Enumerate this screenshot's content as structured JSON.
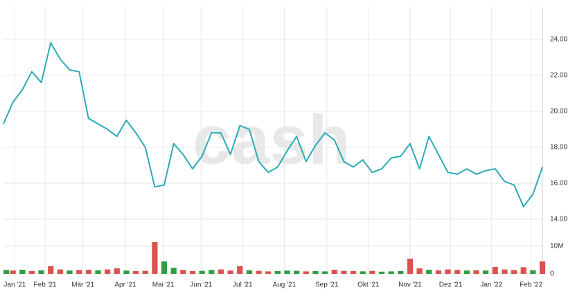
{
  "chart_data": {
    "type": "line",
    "watermark": "cash",
    "xlim": [
      0,
      57
    ],
    "xticks": [
      {
        "value": 1.2,
        "label": "Jan '21"
      },
      {
        "value": 4.4,
        "label": "Feb '21"
      },
      {
        "value": 8.4,
        "label": "Mär '21"
      },
      {
        "value": 12.9,
        "label": "Apr '21"
      },
      {
        "value": 16.9,
        "label": "Mai '21"
      },
      {
        "value": 20.9,
        "label": "Jun '21"
      },
      {
        "value": 25.3,
        "label": "Jul '21"
      },
      {
        "value": 29.7,
        "label": "Aug '21"
      },
      {
        "value": 34.2,
        "label": "Sep '21"
      },
      {
        "value": 38.6,
        "label": "Okt '21"
      },
      {
        "value": 43.0,
        "label": "Nov '21"
      },
      {
        "value": 47.3,
        "label": "Dez '21"
      },
      {
        "value": 51.6,
        "label": "Jan '22"
      },
      {
        "value": 55.8,
        "label": "Feb '22"
      }
    ],
    "ylim": [
      12.5,
      25.8
    ],
    "yticks": [
      {
        "value": 14,
        "label": "14.00"
      },
      {
        "value": 16,
        "label": "16.00"
      },
      {
        "value": 18,
        "label": "18.00"
      },
      {
        "value": 20,
        "label": "20.00"
      },
      {
        "value": 22,
        "label": "22.00"
      },
      {
        "value": 24,
        "label": "24.00"
      }
    ],
    "y2lim": [
      0,
      11.5
    ],
    "y2ticks": [
      0,
      {
        "value": 10,
        "label": "10M"
      }
    ],
    "grid": true,
    "series": [
      {
        "color": "#2aaab8",
        "values": [
          19.3,
          20.5,
          21.2,
          22.2,
          21.6,
          23.8,
          22.9,
          22.3,
          22.2,
          19.6,
          19.3,
          19.0,
          18.6,
          19.5,
          18.8,
          18.0,
          15.8,
          15.9,
          18.2,
          17.6,
          16.8,
          17.5,
          18.8,
          18.8,
          17.6,
          19.2,
          19.0,
          17.2,
          16.6,
          16.9,
          17.8,
          18.6,
          17.2,
          18.1,
          18.8,
          18.4,
          17.2,
          16.9,
          17.3,
          16.6,
          16.8,
          17.4,
          17.5,
          18.2,
          16.8,
          18.6,
          17.6,
          16.6,
          16.5,
          16.8,
          16.5,
          16.7,
          16.8,
          16.1,
          15.9,
          14.7,
          15.4,
          16.9
        ]
      },
      {
        "axis": "y2",
        "type": "bar",
        "values": [
          1.4,
          1.2,
          1.5,
          1.0,
          1.3,
          2.8,
          1.6,
          1.2,
          1.4,
          1.5,
          1.3,
          1.6,
          2.0,
          1.2,
          1.0,
          1.1,
          11.5,
          4.5,
          2.2,
          1.4,
          1.0,
          1.1,
          1.4,
          1.6,
          1.2,
          2.8,
          1.3,
          1.1,
          0.9,
          1.0,
          1.2,
          1.1,
          0.9,
          1.0,
          0.9,
          1.5,
          1.1,
          1.0,
          0.9,
          1.1,
          0.8,
          0.9,
          1.0,
          5.5,
          2.0,
          1.5,
          1.3,
          1.6,
          1.4,
          1.2,
          1.3,
          1.2,
          2.5,
          1.6,
          1.4,
          2.4,
          1.3,
          4.5
        ],
        "colors": [
          "#2e9e3e",
          "#d9534f",
          "#2e9e3e",
          "#d9534f",
          "#2e9e3e",
          "#d9534f",
          "#d9534f",
          "#2e9e3e",
          "#d9534f",
          "#d9534f",
          "#2e9e3e",
          "#d9534f",
          "#d9534f",
          "#2e9e3e",
          "#d9534f",
          "#d9534f",
          "#d9534f",
          "#2e9e3e",
          "#2e9e3e",
          "#d9534f",
          "#d9534f",
          "#2e9e3e",
          "#2e9e3e",
          "#d9534f",
          "#d9534f",
          "#d9534f",
          "#2e9e3e",
          "#d9534f",
          "#d9534f",
          "#2e9e3e",
          "#2e9e3e",
          "#2e9e3e",
          "#d9534f",
          "#2e9e3e",
          "#2e9e3e",
          "#d9534f",
          "#d9534f",
          "#d9534f",
          "#2e9e3e",
          "#d9534f",
          "#2e9e3e",
          "#2e9e3e",
          "#2e9e3e",
          "#d9534f",
          "#d9534f",
          "#2e9e3e",
          "#d9534f",
          "#d9534f",
          "#d9534f",
          "#2e9e3e",
          "#d9534f",
          "#2e9e3e",
          "#d9534f",
          "#d9534f",
          "#d9534f",
          "#d9534f",
          "#2e9e3e",
          "#d9534f"
        ]
      }
    ]
  }
}
